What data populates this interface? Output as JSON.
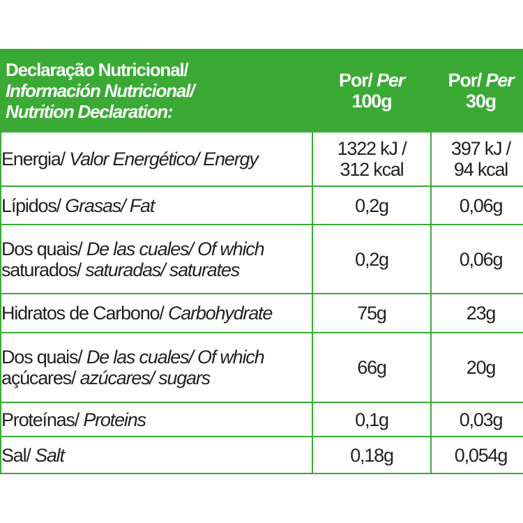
{
  "header": {
    "title_lines": [
      {
        "text": "Declaração Nutricional/",
        "italic": false
      },
      {
        "text": "Información Nutricional/",
        "italic": true
      },
      {
        "text": "Nutrition Declaration:",
        "italic": true
      }
    ],
    "columns": [
      {
        "por": "Por/ ",
        "per": "Per",
        "amount": "100g"
      },
      {
        "por": "Por/ ",
        "per": "Per",
        "amount": "30g"
      }
    ]
  },
  "rows": [
    {
      "label_lines": [
        {
          "pt": "Energia/ ",
          "other": "Valor Energético/ Energy"
        }
      ],
      "values": [
        [
          "1322 kJ /",
          "312 kcal"
        ],
        [
          "397 kJ /",
          "94 kcal"
        ]
      ]
    },
    {
      "label_lines": [
        {
          "pt": "Lípidos/ ",
          "other": "Grasas/ Fat"
        }
      ],
      "values": [
        [
          "0,2g"
        ],
        [
          "0,06g"
        ]
      ]
    },
    {
      "label_lines": [
        {
          "pt": "Dos quais/ ",
          "other": "De las cuales/ Of which"
        },
        {
          "pt": "saturados/ ",
          "other": "saturadas/ saturates"
        }
      ],
      "values": [
        [
          "0,2g"
        ],
        [
          "0,06g"
        ]
      ]
    },
    {
      "label_lines": [
        {
          "pt": "Hidratos de Carbono/ ",
          "other": "Carbohydrate"
        }
      ],
      "values": [
        [
          "75g"
        ],
        [
          "23g"
        ]
      ]
    },
    {
      "label_lines": [
        {
          "pt": "Dos quais/ ",
          "other": "De las cuales/ Of which"
        },
        {
          "pt": "açúcares/ ",
          "other": "azúcares/ sugars"
        }
      ],
      "values": [
        [
          "66g"
        ],
        [
          "20g"
        ]
      ]
    },
    {
      "label_lines": [
        {
          "pt": "Proteínas/ ",
          "other": "Proteins"
        }
      ],
      "values": [
        [
          "0,1g"
        ],
        [
          "0,03g"
        ]
      ]
    },
    {
      "label_lines": [
        {
          "pt": "Sal/ ",
          "other": "Salt"
        }
      ],
      "values": [
        [
          "0,18g"
        ],
        [
          "0,054g"
        ]
      ]
    }
  ]
}
